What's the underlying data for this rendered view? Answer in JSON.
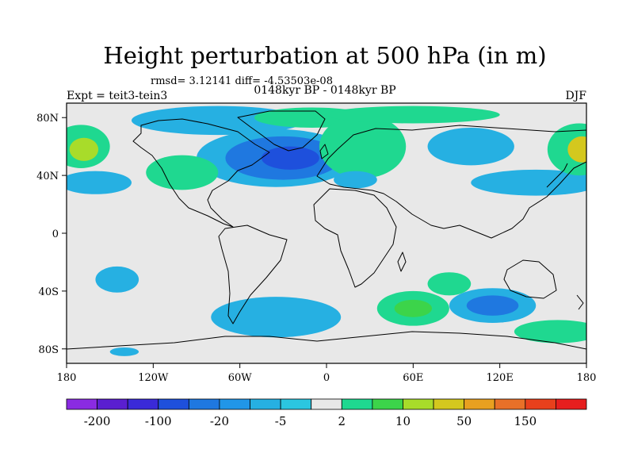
{
  "chart_data": {
    "type": "heatmap",
    "title": "Height perturbation at 500 hPa (in m)",
    "stats_text": "rmsd= 3.12141 diff= -4.53503e-08",
    "subtitle": "0148kyr BP - 0148kyr BP",
    "left_label": "Expt = teit3-tein3",
    "right_label": "DJF",
    "x_ticks": [
      "180",
      "120W",
      "60W",
      "0",
      "60E",
      "120E",
      "180"
    ],
    "x_tick_lons": [
      -180,
      -120,
      -60,
      0,
      60,
      120,
      180
    ],
    "y_ticks": [
      "80N",
      "40N",
      "0",
      "40S",
      "80S"
    ],
    "y_tick_lats": [
      80,
      40,
      0,
      -40,
      -80
    ],
    "lon_range": [
      -180,
      180
    ],
    "lat_range": [
      -90,
      90
    ],
    "colorbar_levels": [
      "-200",
      "-100",
      "-20",
      "-5",
      "2",
      "10",
      "50",
      "150"
    ],
    "colorbar_colors": [
      "#8a2be2",
      "#5a1fd0",
      "#3a2ad8",
      "#1e50dc",
      "#1f78e0",
      "#2196e8",
      "#26b0e2",
      "#2bc6e0",
      "#e8e8e8",
      "#1fd890",
      "#3cd44a",
      "#a8dc2a",
      "#d4c81e",
      "#e8a020",
      "#e87028",
      "#e8401c",
      "#e61e1e"
    ],
    "background_color": "#e8e8e8",
    "anomalies": [
      {
        "name": "north-atlantic-low-outer",
        "lon": -35,
        "lat": 52,
        "rlon": 55,
        "rlat": 20,
        "color": "#26b0e2"
      },
      {
        "name": "north-atlantic-low-mid",
        "lon": -30,
        "lat": 52,
        "rlon": 40,
        "rlat": 15,
        "color": "#1f78e0"
      },
      {
        "name": "north-atlantic-low-core",
        "lon": -25,
        "lat": 52,
        "rlon": 20,
        "rlat": 8,
        "color": "#1e50dc"
      },
      {
        "name": "arctic-canada-low",
        "lon": -75,
        "lat": 78,
        "rlon": 60,
        "rlat": 10,
        "color": "#26b0e2"
      },
      {
        "name": "greenland-high",
        "lon": -10,
        "lat": 80,
        "rlon": 40,
        "rlat": 7,
        "color": "#1fd890"
      },
      {
        "name": "europe-high",
        "lon": 25,
        "lat": 60,
        "rlon": 30,
        "rlat": 22,
        "color": "#1fd890"
      },
      {
        "name": "eurasia-arctic-high",
        "lon": 60,
        "lat": 82,
        "rlon": 60,
        "rlat": 6,
        "color": "#1fd890"
      },
      {
        "name": "siberia-low",
        "lon": 100,
        "lat": 60,
        "rlon": 30,
        "rlat": 13,
        "color": "#26b0e2"
      },
      {
        "name": "n-pacific-west-low",
        "lon": 145,
        "lat": 35,
        "rlon": 45,
        "rlat": 9,
        "color": "#26b0e2"
      },
      {
        "name": "n-pacific-east-low",
        "lon": -160,
        "lat": 35,
        "rlon": 25,
        "rlat": 8,
        "color": "#26b0e2"
      },
      {
        "name": "n-pacific-high-east",
        "lon": 175,
        "lat": 58,
        "rlon": 22,
        "rlat": 18,
        "color": "#1fd890"
      },
      {
        "name": "n-pacific-high-east-core",
        "lon": 177,
        "lat": 58,
        "rlon": 10,
        "rlat": 9,
        "color": "#d4c81e"
      },
      {
        "name": "n-pacific-high-west",
        "lon": -170,
        "lat": 60,
        "rlon": 20,
        "rlat": 15,
        "color": "#1fd890"
      },
      {
        "name": "n-pacific-high-west-core",
        "lon": -168,
        "lat": 58,
        "rlon": 10,
        "rlat": 8,
        "color": "#a8dc2a"
      },
      {
        "name": "gulf-of-mexico-high",
        "lon": -100,
        "lat": 42,
        "rlon": 25,
        "rlat": 12,
        "color": "#1fd890"
      },
      {
        "name": "sahara-low",
        "lon": 20,
        "lat": 37,
        "rlon": 15,
        "rlat": 6,
        "color": "#26b0e2"
      },
      {
        "name": "south-atlantic-low",
        "lon": -35,
        "lat": -58,
        "rlon": 45,
        "rlat": 14,
        "color": "#26b0e2"
      },
      {
        "name": "south-pacific-low",
        "lon": -145,
        "lat": -32,
        "rlon": 15,
        "rlat": 9,
        "color": "#26b0e2"
      },
      {
        "name": "south-africa-high",
        "lon": 60,
        "lat": -52,
        "rlon": 25,
        "rlat": 12,
        "color": "#1fd890"
      },
      {
        "name": "south-africa-high-core",
        "lon": 60,
        "lat": -52,
        "rlon": 13,
        "rlat": 6,
        "color": "#3cd44a"
      },
      {
        "name": "australia-low",
        "lon": 115,
        "lat": -50,
        "rlon": 30,
        "rlat": 12,
        "color": "#26b0e2"
      },
      {
        "name": "australia-low-core",
        "lon": 115,
        "lat": -50,
        "rlon": 18,
        "rlat": 7,
        "color": "#1f78e0"
      },
      {
        "name": "tasman-high",
        "lon": 160,
        "lat": -68,
        "rlon": 30,
        "rlat": 8,
        "color": "#1fd890"
      },
      {
        "name": "indian-ocean-high",
        "lon": 85,
        "lat": -35,
        "rlon": 15,
        "rlat": 8,
        "color": "#1fd890"
      },
      {
        "name": "antarctic-low",
        "lon": -140,
        "lat": -82,
        "rlon": 10,
        "rlat": 3,
        "color": "#26b0e2"
      }
    ]
  }
}
